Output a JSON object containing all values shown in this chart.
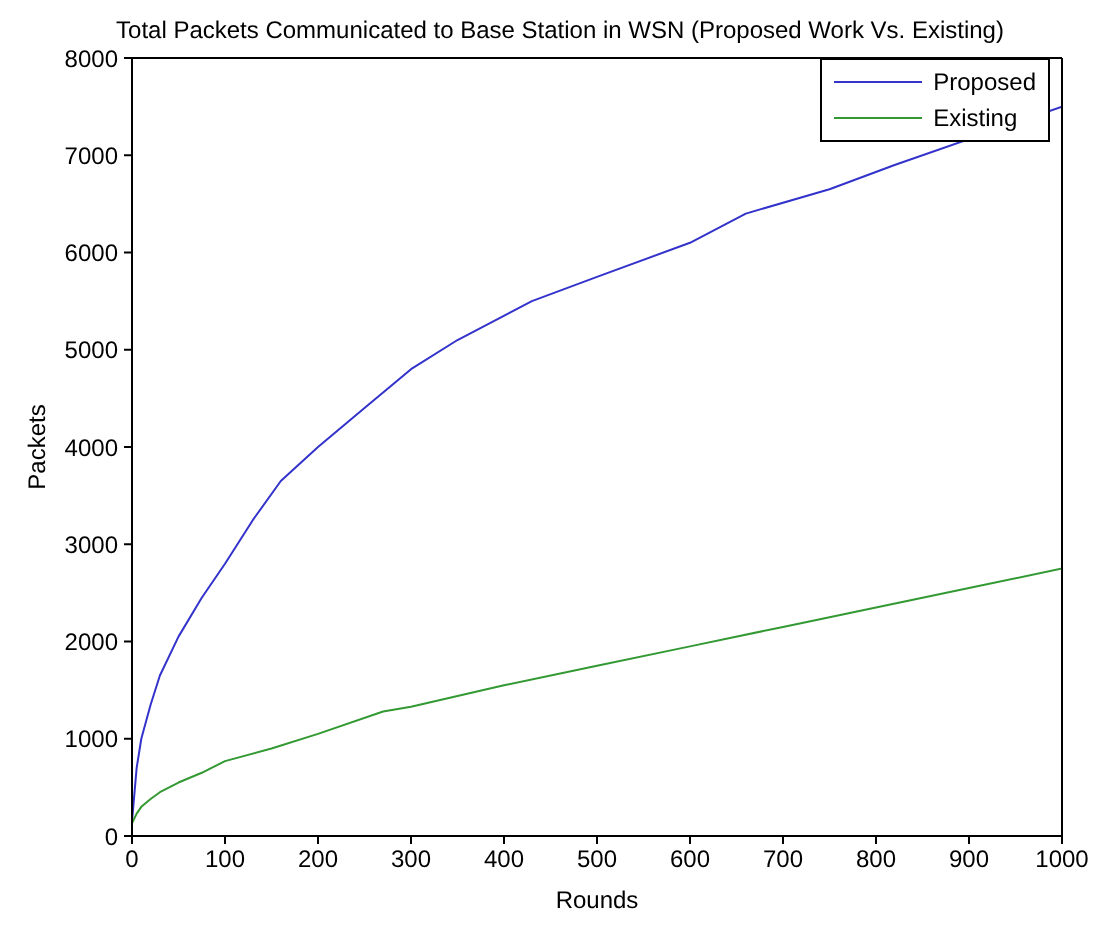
{
  "chart_data": {
    "type": "line",
    "title": "Total Packets Communicated to Base Station in WSN (Proposed Work Vs. Existing)",
    "xlabel": "Rounds",
    "ylabel": "Packets",
    "xlim": [
      0,
      1000
    ],
    "xticks": [
      0,
      100,
      200,
      300,
      400,
      500,
      600,
      700,
      800,
      900,
      1000
    ],
    "ylim": [
      0,
      8000
    ],
    "yticks": [
      0,
      1000,
      2000,
      3000,
      4000,
      5000,
      6000,
      7000,
      8000
    ],
    "legend": "top right",
    "marker": "none",
    "line_style": "solid",
    "series": [
      {
        "name": "Proposed",
        "color": "#3333cc",
        "x": [
          0,
          5,
          10,
          20,
          30,
          50,
          75,
          100,
          130,
          160,
          200,
          250,
          300,
          350,
          430,
          500,
          600,
          660,
          750,
          820,
          1000
        ],
        "values": [
          150,
          700,
          1000,
          1350,
          1650,
          2050,
          2450,
          2800,
          3250,
          3650,
          4000,
          4400,
          4800,
          5100,
          5500,
          5750,
          6100,
          6400,
          6650,
          6900,
          7500
        ]
      },
      {
        "name": "Existing",
        "color": "#339933",
        "x": [
          0,
          5,
          10,
          20,
          30,
          50,
          75,
          100,
          150,
          200,
          270,
          300,
          400,
          500,
          600,
          700,
          800,
          900,
          1000
        ],
        "values": [
          130,
          230,
          300,
          380,
          450,
          550,
          650,
          770,
          900,
          1050,
          1280,
          1330,
          1550,
          1750,
          1950,
          2150,
          2350,
          2550,
          2750
        ]
      }
    ]
  }
}
